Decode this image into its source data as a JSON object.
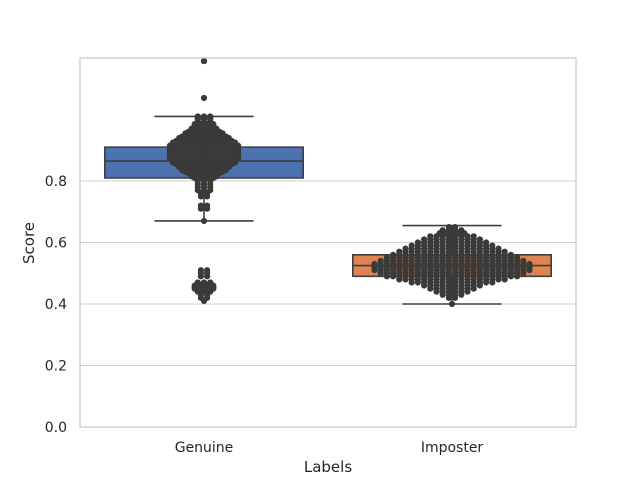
{
  "chart_data": {
    "type": "box",
    "xlabel": "Labels",
    "ylabel": "Score",
    "categories": [
      "Genuine",
      "Imposter"
    ],
    "yticks": [
      "0.0",
      "0.2",
      "0.4",
      "0.6",
      "0.8"
    ],
    "ylim": [
      0.0,
      1.2
    ],
    "grid": "horizontal",
    "colors": {
      "Genuine": "#4c72b0",
      "Imposter": "#dd8452",
      "points": "#3a3a3a",
      "box_line": "#3f3f3f",
      "grid": "#d0d0d0",
      "frame": "#c8c8c8"
    },
    "boxes": [
      {
        "category": "Genuine",
        "whisker_low": 0.67,
        "q1": 0.81,
        "median": 0.865,
        "q3": 0.91,
        "whisker_high": 1.01
      },
      {
        "category": "Imposter",
        "whisker_low": 0.4,
        "q1": 0.49,
        "median": 0.525,
        "q3": 0.56,
        "whisker_high": 0.655
      }
    ],
    "swarm": [
      {
        "category": "Genuine",
        "values": [
          1.19,
          1.19,
          1.07,
          1.01,
          1.005,
          1.0,
          0.99,
          0.985,
          0.98,
          0.975,
          0.97,
          0.965,
          0.96,
          0.955,
          0.955,
          0.95,
          0.945,
          0.94,
          0.94,
          0.935,
          0.93,
          0.925,
          0.92,
          0.915,
          0.91,
          0.905,
          0.9,
          0.895,
          0.89,
          0.885,
          0.88,
          0.875,
          0.87,
          0.865,
          0.86,
          0.855,
          0.85,
          0.845,
          0.84,
          0.835,
          0.83,
          0.825,
          0.82,
          0.815,
          0.81,
          0.8,
          0.79,
          0.78,
          0.77,
          0.76,
          0.75,
          0.72,
          0.71,
          0.67,
          0.51,
          0.5,
          0.49,
          0.47,
          0.46,
          0.455,
          0.45,
          0.445,
          0.44,
          0.43,
          0.42,
          0.41
        ],
        "counts": [
          1,
          1,
          1,
          3,
          3,
          3,
          3,
          4,
          4,
          4,
          5,
          5,
          6,
          6,
          7,
          7,
          8,
          8,
          9,
          9,
          10,
          11,
          11,
          12,
          12,
          12,
          12,
          12,
          12,
          12,
          12,
          12,
          11,
          11,
          11,
          10,
          9,
          9,
          8,
          8,
          7,
          6,
          5,
          5,
          4,
          3,
          3,
          3,
          3,
          2,
          2,
          2,
          2,
          1,
          2,
          2,
          2,
          3,
          4,
          4,
          4,
          3,
          3,
          2,
          2,
          1
        ]
      },
      {
        "category": "Imposter",
        "values": [
          0.65,
          0.64,
          0.63,
          0.62,
          0.61,
          0.6,
          0.59,
          0.58,
          0.57,
          0.56,
          0.55,
          0.54,
          0.53,
          0.52,
          0.51,
          0.5,
          0.49,
          0.48,
          0.47,
          0.46,
          0.45,
          0.44,
          0.43,
          0.42,
          0.4
        ],
        "counts": [
          2,
          4,
          5,
          8,
          10,
          12,
          14,
          16,
          18,
          20,
          22,
          24,
          26,
          26,
          26,
          24,
          22,
          18,
          14,
          10,
          8,
          6,
          4,
          2,
          1
        ]
      }
    ]
  }
}
